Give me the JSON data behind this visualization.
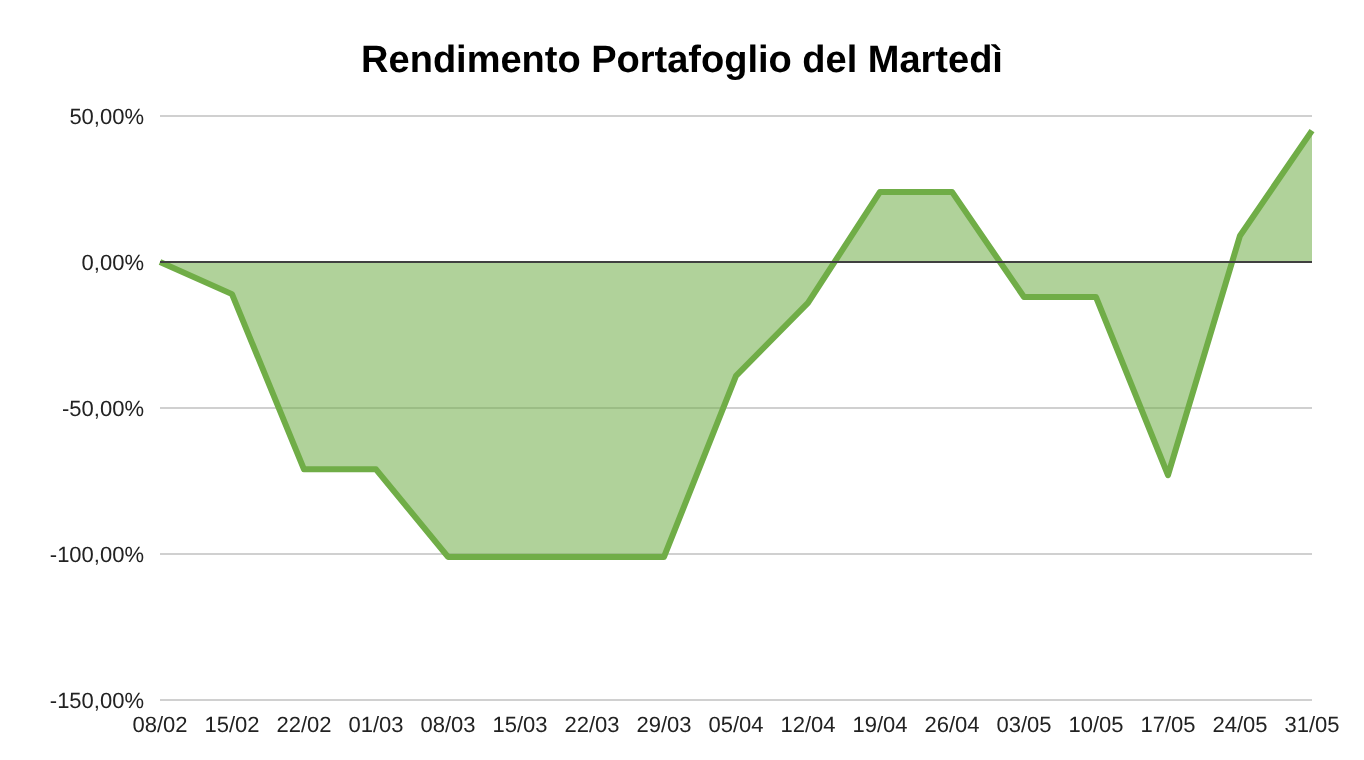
{
  "chart_data": {
    "type": "area",
    "title": "Rendimento Portafoglio del Martedì",
    "categories": [
      "08/02",
      "15/02",
      "22/02",
      "01/03",
      "08/03",
      "15/03",
      "22/03",
      "29/03",
      "05/04",
      "12/04",
      "19/04",
      "26/04",
      "03/05",
      "10/05",
      "17/05",
      "24/05",
      "31/05"
    ],
    "series": [
      {
        "color": "#70ad47",
        "values": [
          0,
          -11,
          -71,
          -71,
          -101,
          -101,
          -101,
          -101,
          -39,
          -14,
          24,
          24,
          -12,
          -12,
          -73,
          9,
          45
        ]
      }
    ],
    "ylim": [
      -150,
      50
    ],
    "yticks": [
      {
        "value": -150,
        "label": "-150,00%"
      },
      {
        "value": -100,
        "label": "-100,00%"
      },
      {
        "value": -50,
        "label": "-50,00%"
      },
      {
        "value": 0,
        "label": "0,00%"
      },
      {
        "value": 50,
        "label": "50,00%"
      }
    ],
    "ref_lines": [
      {
        "axis": "y",
        "value": 0,
        "color": "#404040"
      }
    ],
    "grid": "y",
    "marker": "none",
    "line_style": "solid"
  }
}
